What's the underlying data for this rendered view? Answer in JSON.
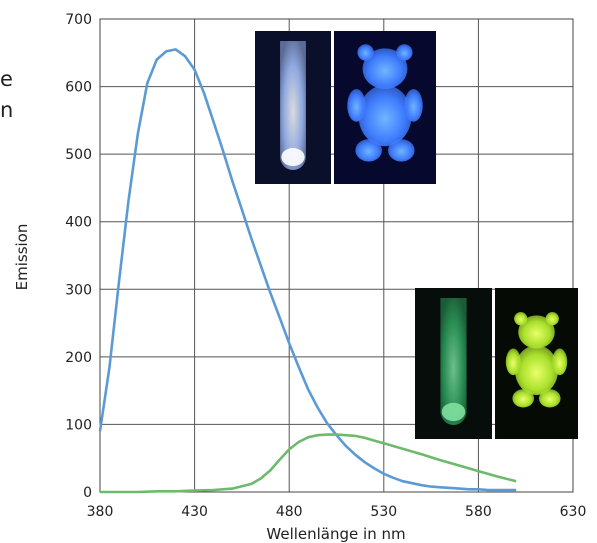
{
  "edge_text": [
    "e",
    "n"
  ],
  "chart_data": {
    "type": "line",
    "title": "",
    "xlabel": "Wellenlänge in nm",
    "ylabel": "Emission",
    "xlim": [
      380,
      630
    ],
    "ylim": [
      0,
      700
    ],
    "x_ticks": [
      380,
      430,
      480,
      530,
      580,
      630
    ],
    "y_ticks": [
      0,
      100,
      200,
      300,
      400,
      500,
      600,
      700
    ],
    "grid": true,
    "series": [
      {
        "color": "#5b9bd5",
        "x": [
          380,
          385,
          390,
          395,
          400,
          405,
          410,
          415,
          420,
          425,
          430,
          435,
          440,
          445,
          450,
          455,
          460,
          465,
          470,
          475,
          480,
          485,
          490,
          495,
          500,
          505,
          510,
          515,
          520,
          525,
          530,
          535,
          540,
          545,
          550,
          555,
          560,
          565,
          570,
          575,
          580,
          585,
          590,
          595,
          600
        ],
        "values": [
          90,
          185,
          310,
          430,
          530,
          605,
          640,
          652,
          655,
          645,
          625,
          590,
          548,
          505,
          460,
          418,
          375,
          335,
          295,
          258,
          220,
          185,
          152,
          125,
          102,
          84,
          68,
          55,
          44,
          35,
          27,
          21,
          16,
          13,
          10,
          8,
          7,
          6,
          5,
          4,
          4,
          3,
          3,
          3,
          3
        ]
      },
      {
        "color": "#6dba6d",
        "x": [
          380,
          390,
          400,
          410,
          420,
          430,
          440,
          450,
          460,
          465,
          470,
          475,
          480,
          485,
          490,
          495,
          500,
          505,
          510,
          515,
          520,
          525,
          530,
          540,
          550,
          560,
          570,
          580,
          590,
          600
        ],
        "values": [
          0,
          0,
          0,
          1,
          1,
          2,
          3,
          5,
          12,
          20,
          32,
          48,
          63,
          74,
          81,
          84,
          85,
          85,
          84,
          83,
          80,
          76,
          72,
          64,
          56,
          47,
          39,
          31,
          23,
          16
        ]
      }
    ]
  },
  "photos": [
    {
      "name": "blue-tube-photo",
      "kind": "tube",
      "bg": "#0a0f2a",
      "glow": "#a8c4ff",
      "core": "#ffffff"
    },
    {
      "name": "blue-bear-photo",
      "kind": "bear",
      "bg": "#06082e",
      "glow": "#3f7cff",
      "core": "#6fb6ff"
    },
    {
      "name": "green-tube-photo",
      "kind": "tube",
      "bg": "#060d0a",
      "glow": "#2fa561",
      "core": "#7fe0a0"
    },
    {
      "name": "green-bear-photo",
      "kind": "bear",
      "bg": "#050a04",
      "glow": "#a9e02c",
      "core": "#eaff6a"
    }
  ]
}
